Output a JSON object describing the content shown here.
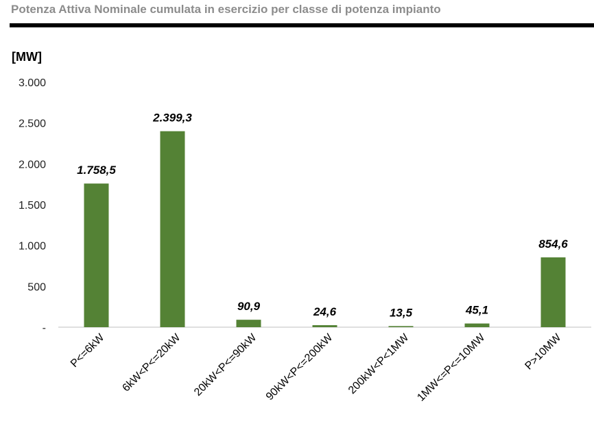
{
  "header": {
    "title": "Potenza Attiva Nominale cumulata in esercizio per classe di potenza impianto",
    "unit_label": "[MW]"
  },
  "chart_data": {
    "type": "bar",
    "title": "Potenza Attiva Nominale cumulata in esercizio per classe di potenza impianto",
    "ylabel": "[MW]",
    "xlabel": "",
    "categories": [
      "P<=6kW",
      "6kW<P<=20kW",
      "20kW<P<=90kW",
      "90kW<P<=200kW",
      "200kW<P<1MW",
      "1MW<=P<=10MW",
      "P>10MW"
    ],
    "values": [
      1758.5,
      2399.3,
      90.9,
      24.6,
      13.5,
      45.1,
      854.6
    ],
    "value_labels": [
      "1.758,5",
      "2.399,3",
      "90,9",
      "24,6",
      "13,5",
      "45,1",
      "854,6"
    ],
    "ylim": [
      0,
      3000
    ],
    "yticks": [
      0,
      500,
      1000,
      1500,
      2000,
      2500,
      3000
    ],
    "ytick_labels": [
      "-",
      "500",
      "1.000",
      "1.500",
      "2.000",
      "2.500",
      "3.000"
    ],
    "grid": false,
    "legend": "none",
    "bar_color": "#548235"
  }
}
